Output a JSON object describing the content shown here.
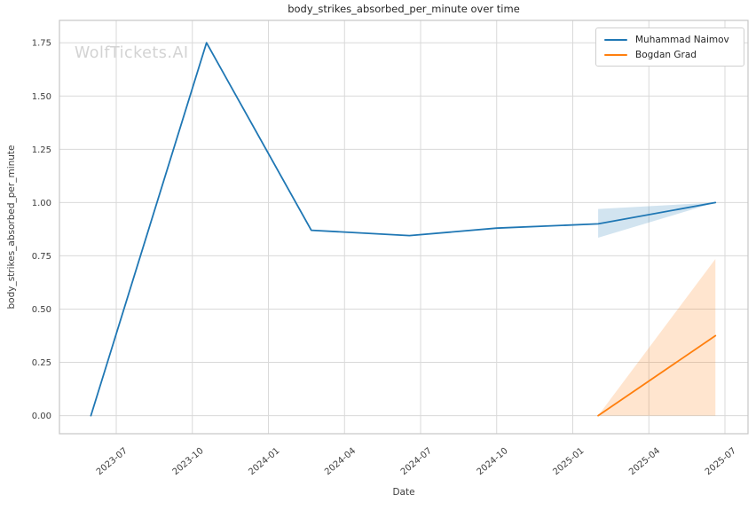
{
  "watermark": "WolfTickets.AI",
  "chart_data": {
    "type": "line",
    "title": "body_strikes_absorbed_per_minute over time",
    "xlabel": "Date",
    "ylabel": "body_strikes_absorbed_per_minute",
    "grid": true,
    "legend_position": "upper right",
    "x_tick_labels": [
      "2023-07",
      "2023-10",
      "2024-01",
      "2024-04",
      "2024-07",
      "2024-10",
      "2025-01",
      "2025-04",
      "2025-07"
    ],
    "y_ticks": [
      0.0,
      0.25,
      0.5,
      0.75,
      1.0,
      1.25,
      1.5,
      1.75
    ],
    "ylim": [
      -0.09,
      1.86
    ],
    "xlim": [
      "2023-04-23",
      "2025-07-27"
    ],
    "series": [
      {
        "name": "Muhammad Naimov",
        "color": "#1f77b4",
        "points": [
          {
            "date": "2023-06-01",
            "value": 0.0
          },
          {
            "date": "2023-10-18",
            "value": 1.75
          },
          {
            "date": "2024-02-22",
            "value": 0.87
          },
          {
            "date": "2024-06-18",
            "value": 0.845
          },
          {
            "date": "2024-10-01",
            "value": 0.88
          },
          {
            "date": "2025-02-01",
            "value": 0.9
          },
          {
            "date": "2025-06-20",
            "value": 1.0
          }
        ],
        "band": [
          {
            "date": "2025-02-01",
            "lo": 0.835,
            "hi": 0.97
          },
          {
            "date": "2025-06-20",
            "lo": 1.0,
            "hi": 1.0
          }
        ]
      },
      {
        "name": "Bogdan Grad",
        "color": "#ff7f0e",
        "points": [
          {
            "date": "2025-02-01",
            "value": 0.0
          },
          {
            "date": "2025-06-20",
            "value": 0.375
          }
        ],
        "band": [
          {
            "date": "2025-02-01",
            "lo": 0.0,
            "hi": 0.0
          },
          {
            "date": "2025-06-20",
            "lo": 0.0,
            "hi": 0.735
          }
        ]
      }
    ]
  },
  "colors": {
    "grid": "#d9d9d9",
    "spine": "#c6c6c6",
    "tick_text": "#3d3d3d",
    "watermark": "#d3d3d3"
  }
}
